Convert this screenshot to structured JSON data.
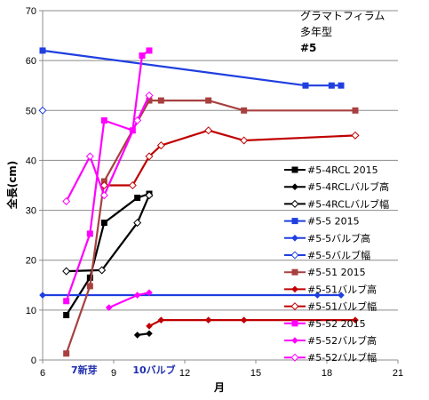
{
  "chart_data": {
    "type": "line",
    "title_lines": [
      "グラマトフィラム",
      "多年型",
      "#5"
    ],
    "xlabel": "月",
    "ylabel": "全長(cm)",
    "xlim": [
      6,
      21
    ],
    "ylim": [
      0,
      70
    ],
    "xticks": [
      6,
      9,
      12,
      15,
      18,
      21
    ],
    "yticks": [
      0,
      10,
      20,
      30,
      40,
      50,
      60,
      70
    ],
    "grid": true,
    "legend_position": "right",
    "annotations": [
      {
        "text": "7新芽",
        "x": 7.2,
        "y": -0.5
      },
      {
        "text": "10バルブ",
        "x": 9.8,
        "y": -0.5
      }
    ],
    "series": [
      {
        "name": "#5-4RCL 2015",
        "color": "#000000",
        "marker": "square-filled",
        "points": [
          [
            7,
            9
          ],
          [
            8,
            16.5
          ],
          [
            8.6,
            27.5
          ],
          [
            10,
            32.5
          ],
          [
            10.5,
            33.3
          ]
        ]
      },
      {
        "name": "#5-4RCLバルブ高",
        "color": "#000000",
        "marker": "diamond-filled",
        "points": [
          [
            10,
            5
          ],
          [
            10.5,
            5.3
          ]
        ]
      },
      {
        "name": "#5-4RCLバルブ幅",
        "color": "#000000",
        "marker": "diamond-open",
        "points": [
          [
            7,
            17.8
          ],
          [
            8.5,
            18
          ],
          [
            10,
            27.5
          ],
          [
            10.5,
            33
          ]
        ]
      },
      {
        "name": "#5-5 2015",
        "color": "#1f3fe0",
        "marker": "square-filled",
        "points": [
          [
            6,
            62
          ],
          [
            17.1,
            55
          ],
          [
            18.2,
            55
          ],
          [
            18.6,
            55
          ]
        ]
      },
      {
        "name": "#5-5バルブ高",
        "color": "#1f3fe0",
        "marker": "diamond-filled",
        "points": [
          [
            6,
            13
          ],
          [
            17.6,
            13
          ],
          [
            18.6,
            13
          ]
        ]
      },
      {
        "name": "#5-5バルブ幅",
        "color": "#1f3fe0",
        "marker": "diamond-open",
        "points": [
          [
            6,
            50
          ]
        ]
      },
      {
        "name": "#5-51 2015",
        "color": "#a84040",
        "marker": "square-filled",
        "points": [
          [
            7,
            1.3
          ],
          [
            8,
            14.8
          ],
          [
            8.6,
            35.8
          ],
          [
            10.5,
            52
          ],
          [
            11,
            52
          ],
          [
            13,
            52
          ],
          [
            14.5,
            50
          ],
          [
            19.2,
            50
          ]
        ]
      },
      {
        "name": "#5-51バルブ高",
        "color": "#c00000",
        "marker": "diamond-filled",
        "points": [
          [
            10.5,
            6.8
          ],
          [
            11,
            8
          ],
          [
            13,
            8
          ],
          [
            14.5,
            8
          ],
          [
            19.2,
            8
          ]
        ]
      },
      {
        "name": "#5-51バルブ幅",
        "color": "#c00000",
        "marker": "diamond-open",
        "points": [
          [
            8.6,
            35
          ],
          [
            9.8,
            35
          ],
          [
            10.5,
            40.8
          ],
          [
            11,
            43
          ],
          [
            13,
            46
          ],
          [
            14.5,
            44
          ],
          [
            19.2,
            45
          ]
        ]
      },
      {
        "name": "#5-52 2015",
        "color": "#ff00ff",
        "marker": "square-filled",
        "points": [
          [
            7,
            11.8
          ],
          [
            8,
            25.3
          ],
          [
            8.6,
            48
          ],
          [
            9.8,
            46
          ],
          [
            10.2,
            61
          ],
          [
            10.5,
            62
          ]
        ]
      },
      {
        "name": "#5-52バルブ高",
        "color": "#ff00ff",
        "marker": "diamond-filled",
        "points": [
          [
            8.8,
            10.5
          ],
          [
            10,
            13
          ],
          [
            10.5,
            13.5
          ]
        ]
      },
      {
        "name": "#5-52バルブ幅",
        "color": "#ff00ff",
        "marker": "diamond-open",
        "points": [
          [
            7,
            31.8
          ],
          [
            8,
            40.8
          ],
          [
            8.6,
            33
          ],
          [
            10,
            48
          ],
          [
            10.5,
            53
          ]
        ]
      }
    ]
  }
}
